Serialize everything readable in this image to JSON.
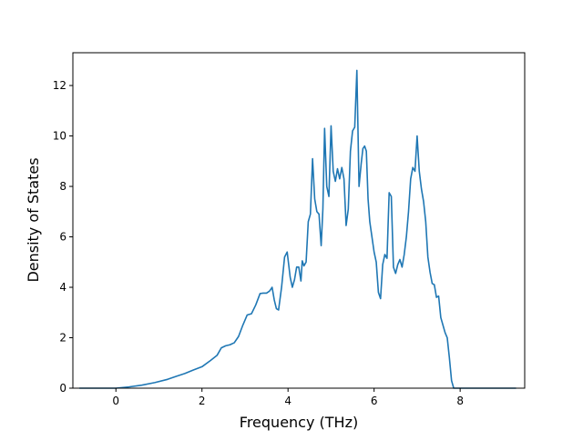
{
  "chart_data": {
    "type": "line",
    "title": "",
    "xlabel": "Frequency (THz)",
    "ylabel": "Density of States",
    "xlim": [
      -1.0,
      9.5
    ],
    "ylim": [
      0,
      13.3
    ],
    "xticks": [
      0,
      2,
      4,
      6,
      8
    ],
    "yticks": [
      0,
      2,
      4,
      6,
      8,
      10,
      12
    ],
    "xtick_labels": [
      "0",
      "2",
      "4",
      "6",
      "8"
    ],
    "ytick_labels": [
      "0",
      "2",
      "4",
      "6",
      "8",
      "10",
      "12"
    ],
    "grid": false,
    "legend": "none",
    "color": "#1f77b4",
    "series": [
      {
        "x": [
          -0.85,
          -0.5,
          0,
          0.3,
          0.6,
          0.9,
          1.2,
          1.4,
          1.6,
          1.8,
          2.0,
          2.2,
          2.35,
          2.45,
          2.55,
          2.65,
          2.75,
          2.85,
          2.95,
          3.05,
          3.15,
          3.25,
          3.35,
          3.42,
          3.5,
          3.57,
          3.63,
          3.68,
          3.73,
          3.78,
          3.85,
          3.92,
          3.98,
          4.05,
          4.1,
          4.15,
          4.2,
          4.25,
          4.3,
          4.33,
          4.37,
          4.42,
          4.47,
          4.52,
          4.57,
          4.62,
          4.67,
          4.72,
          4.77,
          4.81,
          4.85,
          4.9,
          4.95,
          5.0,
          5.05,
          5.1,
          5.15,
          5.2,
          5.25,
          5.3,
          5.35,
          5.4,
          5.45,
          5.5,
          5.55,
          5.6,
          5.65,
          5.7,
          5.74,
          5.78,
          5.82,
          5.86,
          5.9,
          5.95,
          6.0,
          6.05,
          6.1,
          6.15,
          6.2,
          6.25,
          6.3,
          6.35,
          6.4,
          6.45,
          6.5,
          6.55,
          6.6,
          6.65,
          6.7,
          6.75,
          6.8,
          6.85,
          6.9,
          6.95,
          7.0,
          7.05,
          7.1,
          7.15,
          7.2,
          7.25,
          7.3,
          7.35,
          7.4,
          7.45,
          7.5,
          7.55,
          7.6,
          7.65,
          7.7,
          7.75,
          7.8,
          7.85,
          7.9,
          7.95,
          8.0,
          8.05,
          8.1,
          8.15,
          8.2,
          8.25,
          8.3,
          8.35,
          8.4,
          8.45,
          8.5,
          8.55,
          9.3
        ],
        "y": [
          0,
          0,
          0,
          0.05,
          0.12,
          0.22,
          0.35,
          0.47,
          0.58,
          0.72,
          0.85,
          1.1,
          1.3,
          1.6,
          1.68,
          1.72,
          1.8,
          2.05,
          2.5,
          2.9,
          2.95,
          3.3,
          3.75,
          3.77,
          3.77,
          3.85,
          4.0,
          3.5,
          3.15,
          3.1,
          4.0,
          5.2,
          5.4,
          4.4,
          4.0,
          4.3,
          4.8,
          4.8,
          4.25,
          5.05,
          4.85,
          5.0,
          6.6,
          6.9,
          9.1,
          7.5,
          7.0,
          6.9,
          5.65,
          7.1,
          10.3,
          8.0,
          7.6,
          10.4,
          8.6,
          8.2,
          8.7,
          8.3,
          8.75,
          8.3,
          6.45,
          7.1,
          9.4,
          10.2,
          10.35,
          12.6,
          8.0,
          8.9,
          9.5,
          9.6,
          9.4,
          7.5,
          6.6,
          6.0,
          5.4,
          5.0,
          3.8,
          3.55,
          4.9,
          5.3,
          5.15,
          7.75,
          7.6,
          4.8,
          4.55,
          4.9,
          5.1,
          4.8,
          5.3,
          6.0,
          7.0,
          8.3,
          8.75,
          8.6,
          10.0,
          8.6,
          7.9,
          7.4,
          6.6,
          5.2,
          4.6,
          4.15,
          4.1,
          3.6,
          3.65,
          2.8,
          2.5,
          2.2,
          2.0,
          1.2,
          0.3,
          0,
          0,
          0,
          0,
          0,
          0,
          0,
          0,
          0,
          0,
          0,
          0,
          0,
          0,
          0,
          0
        ]
      }
    ]
  }
}
